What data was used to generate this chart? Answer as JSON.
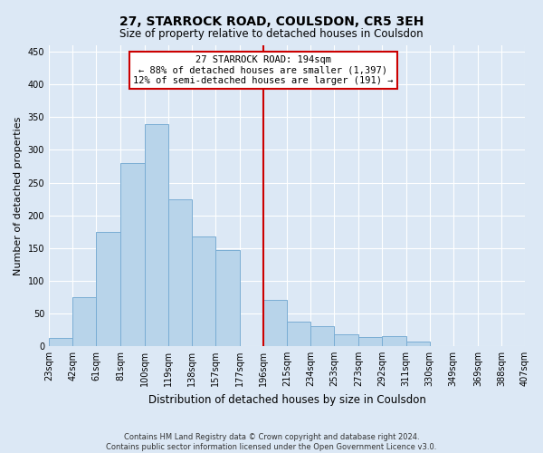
{
  "title": "27, STARROCK ROAD, COULSDON, CR5 3EH",
  "subtitle": "Size of property relative to detached houses in Coulsdon",
  "xlabel": "Distribution of detached houses by size in Coulsdon",
  "ylabel": "Number of detached properties",
  "footnote1": "Contains HM Land Registry data © Crown copyright and database right 2024.",
  "footnote2": "Contains public sector information licensed under the Open Government Licence v3.0.",
  "bin_labels": [
    "23sqm",
    "42sqm",
    "61sqm",
    "81sqm",
    "100sqm",
    "119sqm",
    "138sqm",
    "157sqm",
    "177sqm",
    "196sqm",
    "215sqm",
    "234sqm",
    "253sqm",
    "273sqm",
    "292sqm",
    "311sqm",
    "330sqm",
    "349sqm",
    "369sqm",
    "388sqm",
    "407sqm"
  ],
  "bar_values": [
    13,
    75,
    175,
    280,
    340,
    225,
    167,
    147,
    0,
    70,
    38,
    30,
    18,
    14,
    15,
    7,
    0,
    0,
    0,
    0
  ],
  "bin_edges": [
    23,
    42,
    61,
    81,
    100,
    119,
    138,
    157,
    177,
    196,
    215,
    234,
    253,
    273,
    292,
    311,
    330,
    349,
    369,
    388,
    407
  ],
  "bar_color": "#b8d4ea",
  "bar_edge_color": "#7aadd4",
  "vline_x": 196,
  "vline_color": "#cc0000",
  "annotation_title": "27 STARROCK ROAD: 194sqm",
  "annotation_line1": "← 88% of detached houses are smaller (1,397)",
  "annotation_line2": "12% of semi-detached houses are larger (191) →",
  "annotation_box_color": "#ffffff",
  "annotation_box_edge": "#cc0000",
  "ylim": [
    0,
    460
  ],
  "xlim_left": 23,
  "xlim_right": 407,
  "background_color": "#dce8f5",
  "grid_color": "#ffffff",
  "title_fontsize": 10,
  "subtitle_fontsize": 8.5,
  "ylabel_fontsize": 8,
  "xlabel_fontsize": 8.5,
  "tick_fontsize": 7,
  "annot_fontsize": 7.5,
  "footnote_fontsize": 6
}
